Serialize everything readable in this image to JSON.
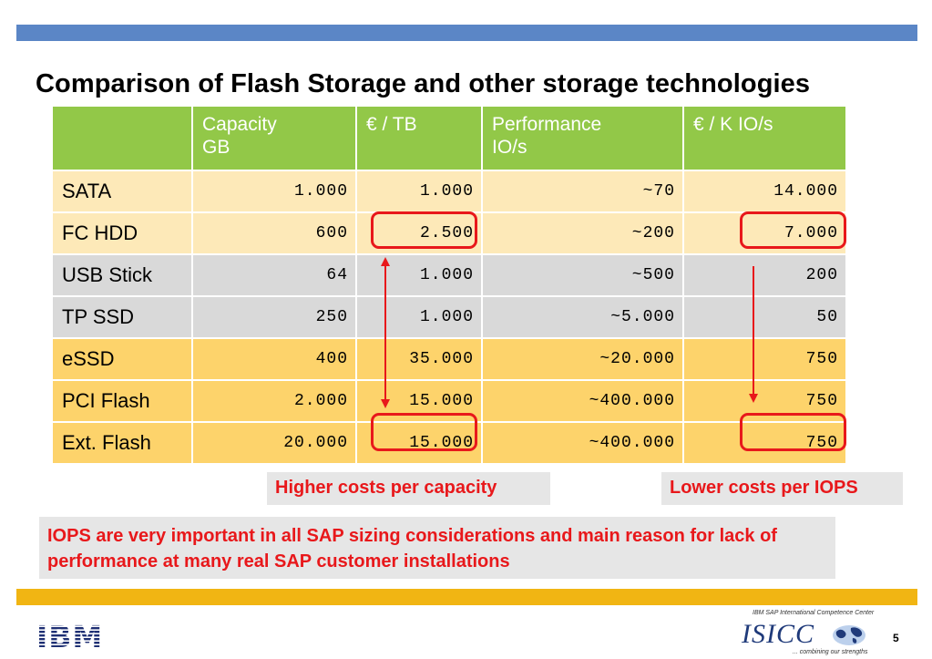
{
  "title": "Comparison of Flash Storage and other storage technologies",
  "table": {
    "headers": [
      "",
      "Capacity\nGB",
      "€ / TB",
      "Performance\nIO/s",
      "€ / K IO/s"
    ],
    "rows": [
      [
        "SATA",
        "1.000",
        "1.000",
        "~70",
        "14.000"
      ],
      [
        "FC HDD",
        "600",
        "2.500",
        "~200",
        "7.000"
      ],
      [
        "USB Stick",
        "64",
        "1.000",
        "~500",
        "200"
      ],
      [
        "TP SSD",
        "250",
        "1.000",
        "~5.000",
        "50"
      ],
      [
        "eSSD",
        "400",
        "35.000",
        "~20.000",
        "750"
      ],
      [
        "PCI Flash",
        "2.000",
        "15.000",
        "~400.000",
        "750"
      ],
      [
        "Ext. Flash",
        "20.000",
        "15.000",
        "~400.000",
        "750"
      ]
    ]
  },
  "callouts": {
    "higher_costs": "Higher costs per capacity",
    "lower_costs": "Lower costs per IOPS",
    "note": "IOPS are very important in all SAP sizing considerations and main reason for lack of performance at many real SAP customer installations"
  },
  "footer": {
    "ibm_logo": "IBM",
    "isicc_tagline_top": "IBM SAP International Competence Center",
    "isicc_word": "ISICC",
    "isicc_tagline_bottom": "... combining our strengths",
    "page_number": "5"
  },
  "colors": {
    "top_bar": "#5b86c6",
    "bottom_bar": "#f1b513",
    "header_green": "#92c848",
    "highlight_red": "#e8181b"
  }
}
